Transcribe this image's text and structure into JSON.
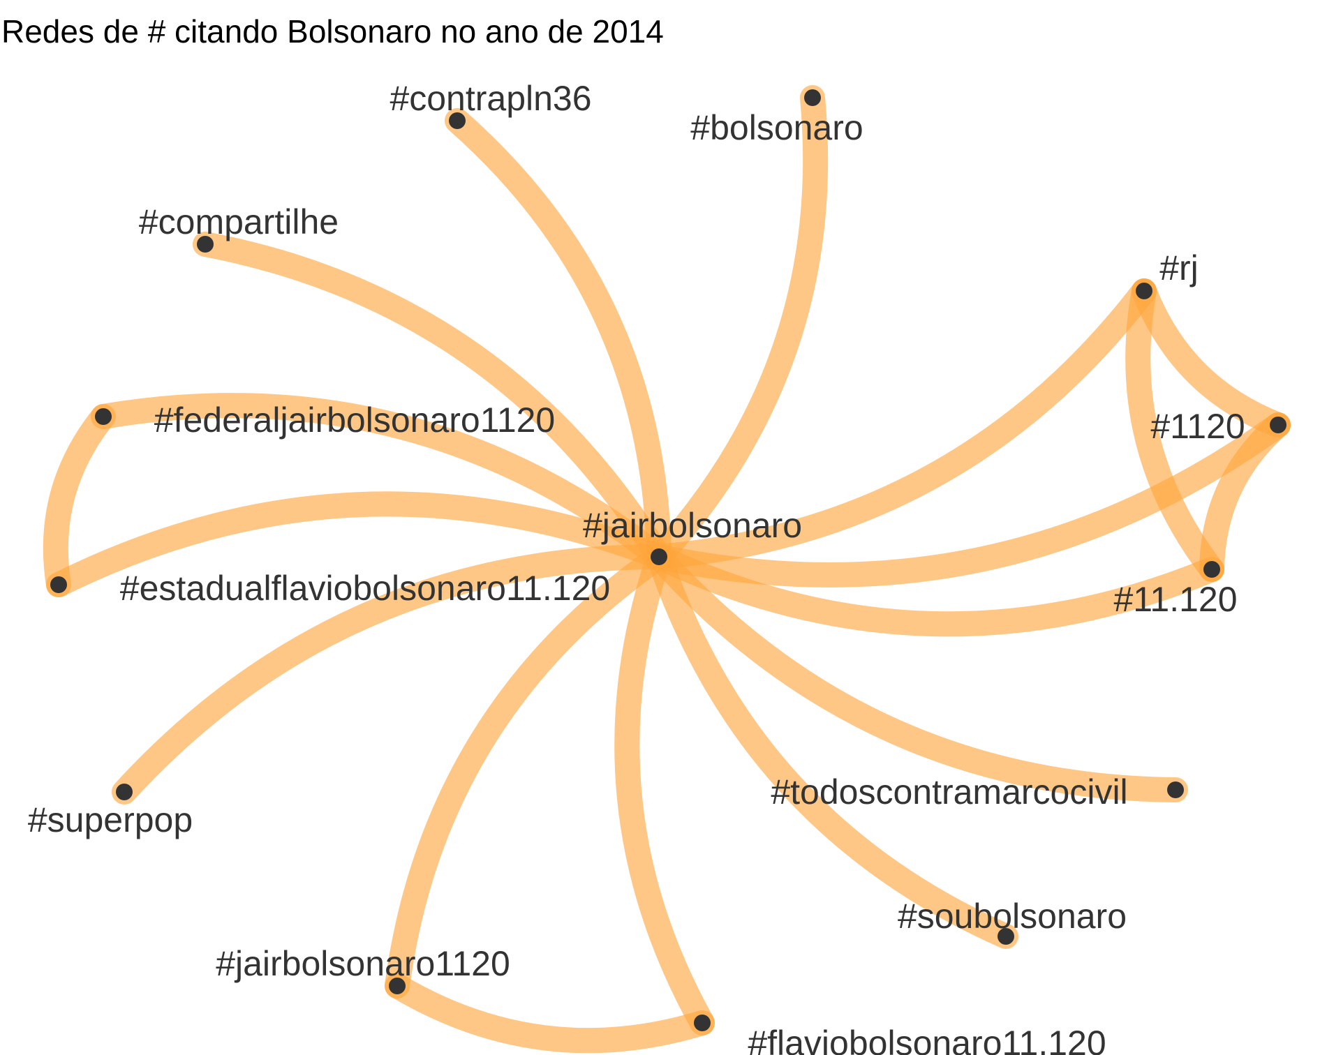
{
  "title": "Redes de # citando Bolsonaro no ano de 2014",
  "colors": {
    "edge": "#ffa53a",
    "node": "#333333",
    "label": "#333333",
    "background": "#ffffff"
  },
  "nodes": [
    {
      "id": "jairbolsonaro",
      "label": "#jairbolsonaro"
    },
    {
      "id": "contrapln36",
      "label": "#contrapln36"
    },
    {
      "id": "bolsonaro",
      "label": "#bolsonaro"
    },
    {
      "id": "compartilhe",
      "label": "#compartilhe"
    },
    {
      "id": "rj",
      "label": "#rj"
    },
    {
      "id": "federaljairbolsonaro1120",
      "label": "#federaljairbolsonaro1120"
    },
    {
      "id": "1120",
      "label": "#1120"
    },
    {
      "id": "estadualflaviobolsonaro11120",
      "label": "#estadualflaviobolsonaro11.120"
    },
    {
      "id": "11120",
      "label": "#11.120"
    },
    {
      "id": "superpop",
      "label": "#superpop"
    },
    {
      "id": "todoscontramarcocivil",
      "label": "#todoscontramarcocivil"
    },
    {
      "id": "soubolsonaro",
      "label": "#soubolsonaro"
    },
    {
      "id": "jairbolsonaro1120",
      "label": "#jairbolsonaro1120"
    },
    {
      "id": "flaviobolsonaro11120",
      "label": "#flaviobolsonaro11.120"
    }
  ],
  "edges": [
    {
      "source": "jairbolsonaro",
      "target": "contrapln36"
    },
    {
      "source": "jairbolsonaro",
      "target": "bolsonaro"
    },
    {
      "source": "jairbolsonaro",
      "target": "compartilhe"
    },
    {
      "source": "jairbolsonaro",
      "target": "rj"
    },
    {
      "source": "jairbolsonaro",
      "target": "federaljairbolsonaro1120"
    },
    {
      "source": "jairbolsonaro",
      "target": "1120"
    },
    {
      "source": "jairbolsonaro",
      "target": "estadualflaviobolsonaro11120"
    },
    {
      "source": "jairbolsonaro",
      "target": "11120"
    },
    {
      "source": "jairbolsonaro",
      "target": "superpop"
    },
    {
      "source": "jairbolsonaro",
      "target": "todoscontramarcocivil"
    },
    {
      "source": "jairbolsonaro",
      "target": "soubolsonaro"
    },
    {
      "source": "jairbolsonaro",
      "target": "jairbolsonaro1120"
    },
    {
      "source": "jairbolsonaro",
      "target": "flaviobolsonaro11120"
    },
    {
      "source": "rj",
      "target": "1120"
    },
    {
      "source": "rj",
      "target": "11120"
    },
    {
      "source": "1120",
      "target": "11120"
    },
    {
      "source": "federaljairbolsonaro1120",
      "target": "estadualflaviobolsonaro11120"
    },
    {
      "source": "jairbolsonaro1120",
      "target": "flaviobolsonaro11120"
    }
  ]
}
